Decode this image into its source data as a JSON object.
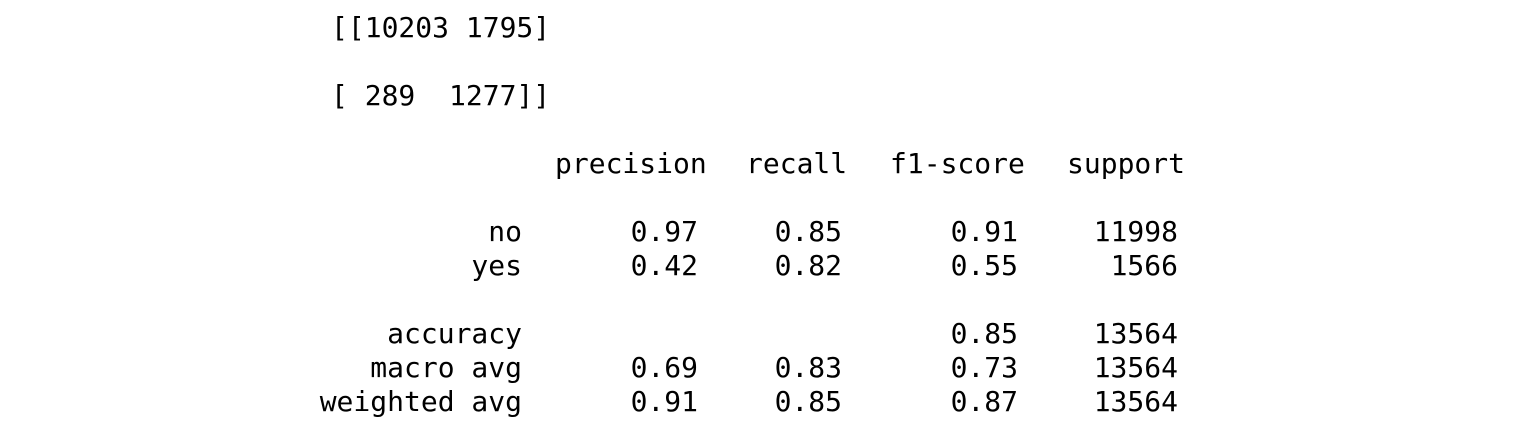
{
  "confusion_matrix": {
    "row1": "[[10203 1795]",
    "row2": "[ 289  1277]]"
  },
  "report": {
    "headers": {
      "precision": "precision",
      "recall": "recall",
      "f1": "f1-score",
      "support": "support"
    },
    "rows": [
      {
        "label": "no",
        "precision": "0.97",
        "recall": "0.85",
        "f1": "0.91",
        "support": "11998"
      },
      {
        "label": "yes",
        "precision": "0.42",
        "recall": "0.82",
        "f1": "0.55",
        "support": "1566"
      },
      {
        "label": "accuracy",
        "precision": "",
        "recall": "",
        "f1": "0.85",
        "support": "13564"
      },
      {
        "label": "macro avg",
        "precision": "0.69",
        "recall": "0.83",
        "f1": "0.73",
        "support": "13564"
      },
      {
        "label": "weighted avg",
        "precision": "0.91",
        "recall": "0.85",
        "f1": "0.87",
        "support": "13564"
      }
    ]
  }
}
